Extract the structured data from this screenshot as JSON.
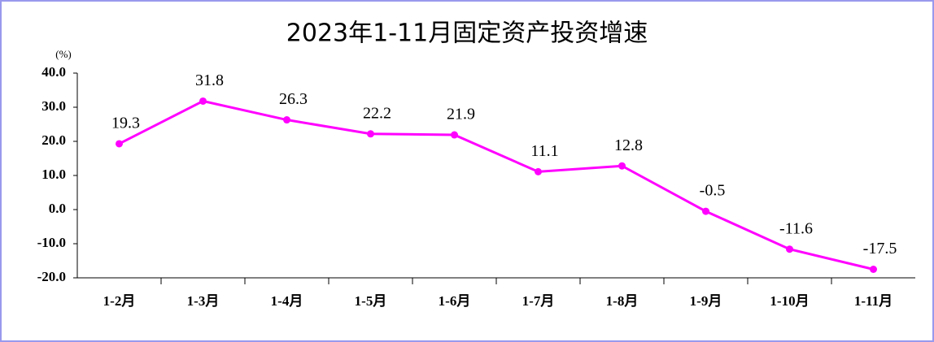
{
  "chart_data": {
    "type": "line",
    "title": "2023年1-11月固定资产投资增速",
    "unit_label": "(%)",
    "categories": [
      "1-2月",
      "1-3月",
      "1-4月",
      "1-5月",
      "1-6月",
      "1-7月",
      "1-8月",
      "1-9月",
      "1-10月",
      "1-11月"
    ],
    "values": [
      19.3,
      31.8,
      26.3,
      22.2,
      21.9,
      11.1,
      12.8,
      -0.5,
      -11.6,
      -17.5
    ],
    "color": "#ff00ff",
    "ylim": [
      -20,
      40
    ],
    "yticks": [
      {
        "value": -20,
        "label": "-20.0"
      },
      {
        "value": -10,
        "label": "-10.0"
      },
      {
        "value": 0,
        "label": "0.0"
      },
      {
        "value": 10,
        "label": "10.0"
      },
      {
        "value": 20,
        "label": "20.0"
      },
      {
        "value": 30,
        "label": "30.0"
      },
      {
        "value": 40,
        "label": "40.0"
      }
    ],
    "grid": false
  }
}
